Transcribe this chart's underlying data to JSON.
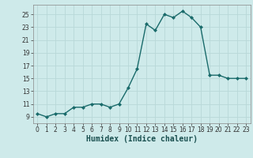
{
  "x": [
    0,
    1,
    2,
    3,
    4,
    5,
    6,
    7,
    8,
    9,
    10,
    11,
    12,
    13,
    14,
    15,
    16,
    17,
    18,
    19,
    20,
    21,
    22,
    23
  ],
  "y": [
    9.5,
    9.0,
    9.5,
    9.5,
    10.5,
    10.5,
    11.0,
    11.0,
    10.5,
    11.0,
    13.5,
    16.5,
    23.5,
    22.5,
    25.0,
    24.5,
    25.5,
    24.5,
    23.0,
    15.5,
    15.5,
    15.0,
    15.0,
    15.0
  ],
  "line_color": "#1a6b6b",
  "marker": "D",
  "marker_size": 2.0,
  "bg_color": "#ceeaea",
  "grid_color": "#b8d8d8",
  "xlabel": "Humidex (Indice chaleur)",
  "ylim": [
    8,
    26.5
  ],
  "yticks": [
    9,
    11,
    13,
    15,
    17,
    19,
    21,
    23,
    25
  ],
  "xticks": [
    0,
    1,
    2,
    3,
    4,
    5,
    6,
    7,
    8,
    9,
    10,
    11,
    12,
    13,
    14,
    15,
    16,
    17,
    18,
    19,
    20,
    21,
    22,
    23
  ],
  "tick_fontsize": 5.5,
  "xlabel_fontsize": 7.0,
  "line_width": 1.0
}
